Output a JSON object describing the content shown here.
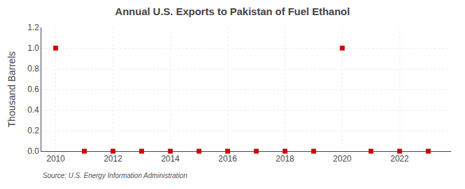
{
  "chart_data": {
    "type": "scatter",
    "title": "Annual U.S. Exports to Pakistan of Fuel Ethanol",
    "ylabel": "Thousand Barrels",
    "annotations": [
      "Source: U.S. Energy Information Administration"
    ],
    "x": [
      2010,
      2011,
      2012,
      2013,
      2014,
      2015,
      2016,
      2017,
      2018,
      2019,
      2020,
      2021,
      2022,
      2023
    ],
    "values": [
      1.0,
      0.0,
      0.0,
      0.0,
      0.0,
      0.0,
      0.0,
      0.0,
      0.0,
      0.0,
      1.0,
      0.0,
      0.0,
      0.0
    ],
    "color": "#cc0000",
    "marker": "square",
    "xlim": [
      2009.5,
      2023.8
    ],
    "xticks": [
      2010,
      2012,
      2014,
      2016,
      2018,
      2020,
      2022
    ],
    "ylim": [
      0.0,
      1.2
    ],
    "yticks": [
      {
        "value": 0.0,
        "label": "0.0"
      },
      0.2,
      0.4,
      0.6,
      0.8,
      {
        "value": 1.0,
        "label": "1.0"
      },
      1.2
    ],
    "grid": true
  }
}
